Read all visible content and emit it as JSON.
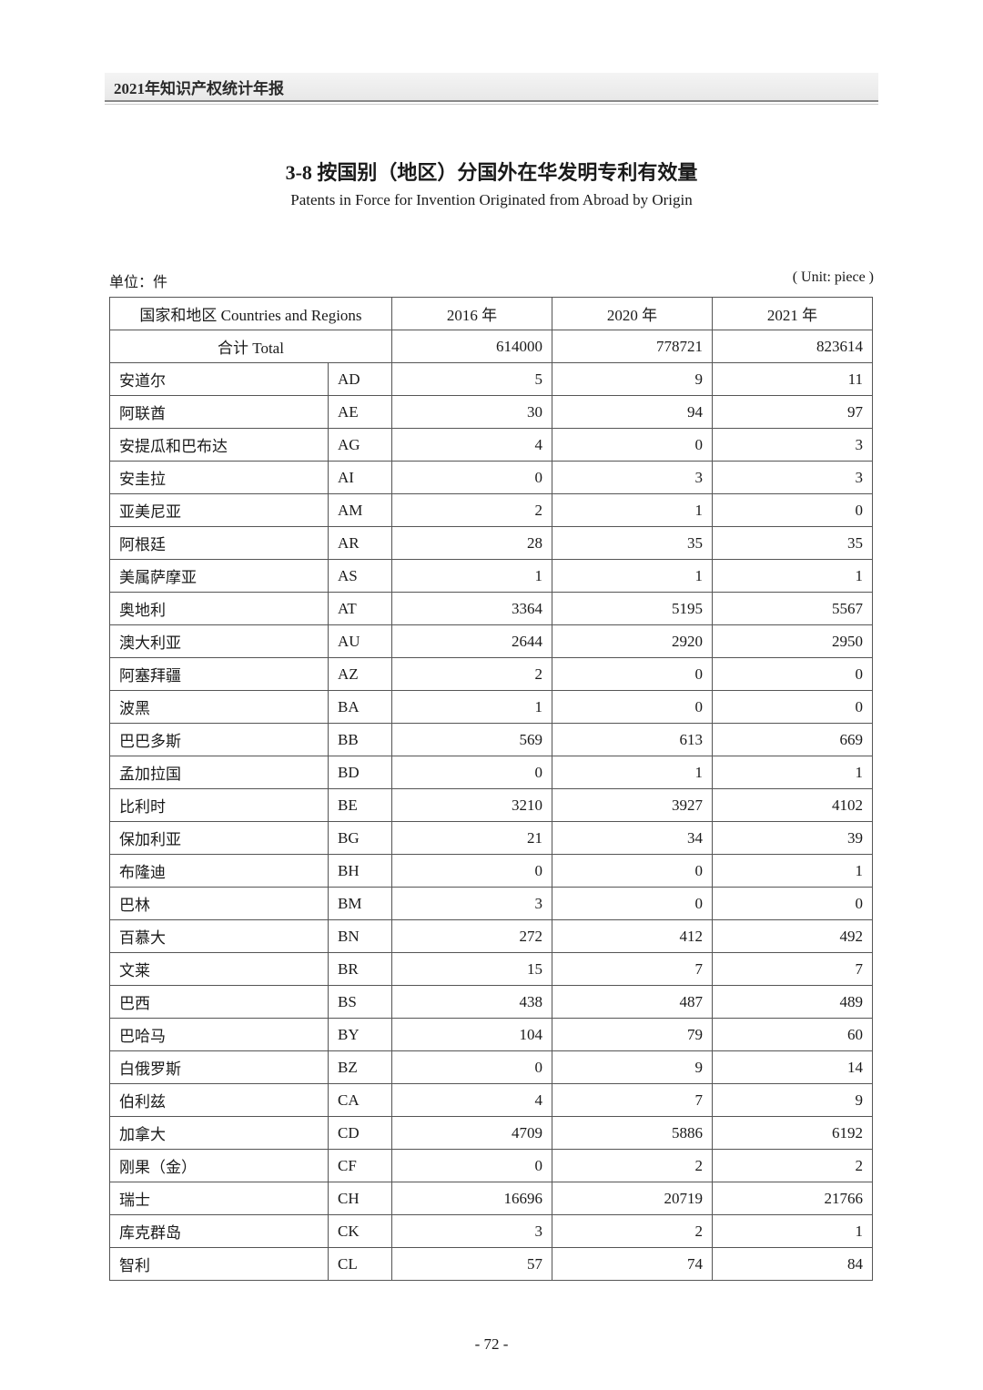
{
  "header": {
    "year_title": "2021年知识产权统计年报"
  },
  "title": {
    "cn": "3-8  按国别（地区）分国外在华发明专利有效量",
    "en": "Patents in Force for Invention Originated from Abroad by Origin"
  },
  "unit": {
    "cn": "单位：件",
    "en": "( Unit: piece )"
  },
  "table": {
    "header": {
      "countries": "国家和地区 Countries and Regions",
      "y2016": "2016 年",
      "y2020": "2020 年",
      "y2021": "2021 年"
    },
    "total": {
      "label": "合计 Total",
      "y2016": "614000",
      "y2020": "778721",
      "y2021": "823614"
    },
    "rows": [
      {
        "name": "安道尔",
        "code": "AD",
        "y2016": "5",
        "y2020": "9",
        "y2021": "11"
      },
      {
        "name": "阿联酋",
        "code": "AE",
        "y2016": "30",
        "y2020": "94",
        "y2021": "97"
      },
      {
        "name": "安提瓜和巴布达",
        "code": "AG",
        "y2016": "4",
        "y2020": "0",
        "y2021": "3"
      },
      {
        "name": "安圭拉",
        "code": "AI",
        "y2016": "0",
        "y2020": "3",
        "y2021": "3"
      },
      {
        "name": "亚美尼亚",
        "code": "AM",
        "y2016": "2",
        "y2020": "1",
        "y2021": "0"
      },
      {
        "name": "阿根廷",
        "code": "AR",
        "y2016": "28",
        "y2020": "35",
        "y2021": "35"
      },
      {
        "name": "美属萨摩亚",
        "code": "AS",
        "y2016": "1",
        "y2020": "1",
        "y2021": "1"
      },
      {
        "name": "奥地利",
        "code": "AT",
        "y2016": "3364",
        "y2020": "5195",
        "y2021": "5567"
      },
      {
        "name": "澳大利亚",
        "code": "AU",
        "y2016": "2644",
        "y2020": "2920",
        "y2021": "2950"
      },
      {
        "name": "阿塞拜疆",
        "code": "AZ",
        "y2016": "2",
        "y2020": "0",
        "y2021": "0"
      },
      {
        "name": "波黑",
        "code": "BA",
        "y2016": "1",
        "y2020": "0",
        "y2021": "0"
      },
      {
        "name": "巴巴多斯",
        "code": "BB",
        "y2016": "569",
        "y2020": "613",
        "y2021": "669"
      },
      {
        "name": "孟加拉国",
        "code": "BD",
        "y2016": "0",
        "y2020": "1",
        "y2021": "1"
      },
      {
        "name": "比利时",
        "code": "BE",
        "y2016": "3210",
        "y2020": "3927",
        "y2021": "4102"
      },
      {
        "name": "保加利亚",
        "code": "BG",
        "y2016": "21",
        "y2020": "34",
        "y2021": "39"
      },
      {
        "name": "布隆迪",
        "code": "BH",
        "y2016": "0",
        "y2020": "0",
        "y2021": "1"
      },
      {
        "name": "巴林",
        "code": "BM",
        "y2016": "3",
        "y2020": "0",
        "y2021": "0"
      },
      {
        "name": "百慕大",
        "code": "BN",
        "y2016": "272",
        "y2020": "412",
        "y2021": "492"
      },
      {
        "name": "文莱",
        "code": "BR",
        "y2016": "15",
        "y2020": "7",
        "y2021": "7"
      },
      {
        "name": "巴西",
        "code": "BS",
        "y2016": "438",
        "y2020": "487",
        "y2021": "489"
      },
      {
        "name": "巴哈马",
        "code": "BY",
        "y2016": "104",
        "y2020": "79",
        "y2021": "60"
      },
      {
        "name": "白俄罗斯",
        "code": "BZ",
        "y2016": "0",
        "y2020": "9",
        "y2021": "14"
      },
      {
        "name": "伯利兹",
        "code": "CA",
        "y2016": "4",
        "y2020": "7",
        "y2021": "9"
      },
      {
        "name": "加拿大",
        "code": "CD",
        "y2016": "4709",
        "y2020": "5886",
        "y2021": "6192"
      },
      {
        "name": "刚果（金）",
        "code": "CF",
        "y2016": "0",
        "y2020": "2",
        "y2021": "2"
      },
      {
        "name": "瑞士",
        "code": "CH",
        "y2016": "16696",
        "y2020": "20719",
        "y2021": "21766"
      },
      {
        "name": "库克群岛",
        "code": "CK",
        "y2016": "3",
        "y2020": "2",
        "y2021": "1"
      },
      {
        "name": "智利",
        "code": "CL",
        "y2016": "57",
        "y2020": "74",
        "y2021": "84"
      }
    ]
  },
  "page_number": "- 72 -"
}
